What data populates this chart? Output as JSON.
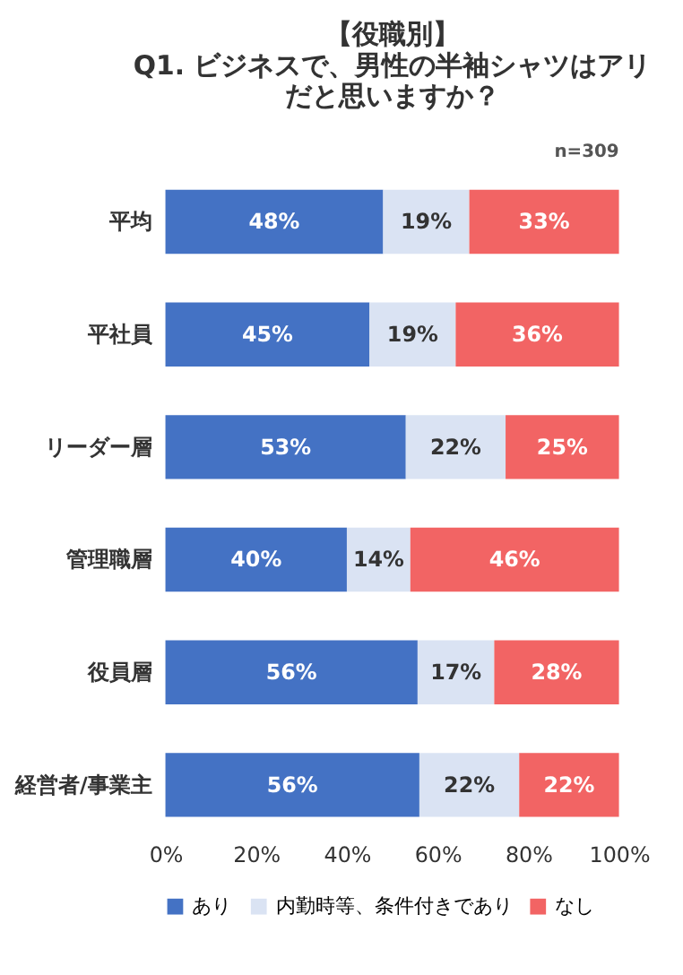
{
  "chart_data": {
    "type": "bar",
    "orientation": "horizontal",
    "stacked": true,
    "title": "【役職別】",
    "subtitle": "Q1. ビジネスで、男性の半袖シャツはアリだと思いますか？",
    "annotations": [
      "n=309"
    ],
    "categories": [
      "平均",
      "平社員",
      "リーダー層",
      "管理職層",
      "役員層",
      "経営者/事業主"
    ],
    "series": [
      {
        "name": "あり",
        "color": "#4472c4",
        "values": [
          48,
          45,
          53,
          40,
          55.6,
          56
        ]
      },
      {
        "name": "内勤時等、条件付きであり",
        "color": "#dae3f3",
        "values": [
          19,
          19,
          22,
          14,
          16.9,
          22
        ]
      },
      {
        "name": "なし",
        "color": "#f26464",
        "values": [
          33,
          36,
          25,
          46,
          27.5,
          22
        ]
      }
    ],
    "value_labels": [
      [
        "48%",
        "45%",
        "53%",
        "40%",
        "56%",
        "56%"
      ],
      [
        "19%",
        "19%",
        "22%",
        "14%",
        "17%",
        "22%"
      ],
      [
        "33%",
        "36%",
        "25%",
        "46%",
        "28%",
        "22%"
      ]
    ],
    "xlim": [
      0,
      100
    ],
    "xticks": [
      {
        "value": 0,
        "label": "0%"
      },
      {
        "value": 20,
        "label": "20%"
      },
      {
        "value": 40,
        "label": "40%"
      },
      {
        "value": 60,
        "label": "60%"
      },
      {
        "value": 80,
        "label": "80%"
      },
      {
        "value": 100,
        "label": "100%"
      }
    ],
    "grid": false,
    "legend": "bottom"
  }
}
